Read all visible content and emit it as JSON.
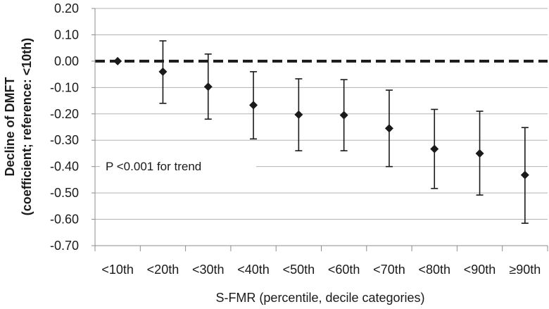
{
  "chart_data": {
    "type": "scatter",
    "error_bars": true,
    "xlabel": "S-FMR (percentile, decile categories)",
    "ylabel_line1": "Decline of DMFT",
    "ylabel_line2": "(coefficient; reference: <10th)",
    "ylim": [
      -0.7,
      0.2
    ],
    "y_ticks": [
      "0.20",
      "0.10",
      "0.00",
      "-0.10",
      "-0.20",
      "-0.30",
      "-0.40",
      "-0.50",
      "-0.60",
      "-0.70"
    ],
    "y_tick_values": [
      0.2,
      0.1,
      0.0,
      -0.1,
      -0.2,
      -0.3,
      -0.4,
      -0.5,
      -0.6,
      -0.7
    ],
    "grid": true,
    "reference_line": 0.0,
    "annotation": "P <0.001 for trend",
    "categories": [
      "<10th",
      "<20th",
      "<30th",
      "<40th",
      "<50th",
      "<60th",
      "<70th",
      "<80th",
      "<90th",
      "≥90th"
    ],
    "points": [
      {
        "value": 0.0,
        "lower": null,
        "upper": null
      },
      {
        "value": -0.04,
        "lower": -0.16,
        "upper": 0.077
      },
      {
        "value": -0.097,
        "lower": -0.22,
        "upper": 0.027
      },
      {
        "value": -0.167,
        "lower": -0.295,
        "upper": -0.04
      },
      {
        "value": -0.203,
        "lower": -0.34,
        "upper": -0.067
      },
      {
        "value": -0.205,
        "lower": -0.34,
        "upper": -0.07
      },
      {
        "value": -0.255,
        "lower": -0.4,
        "upper": -0.11
      },
      {
        "value": -0.333,
        "lower": -0.483,
        "upper": -0.183
      },
      {
        "value": -0.35,
        "lower": -0.508,
        "upper": -0.19
      },
      {
        "value": -0.432,
        "lower": -0.615,
        "upper": -0.252
      }
    ]
  }
}
